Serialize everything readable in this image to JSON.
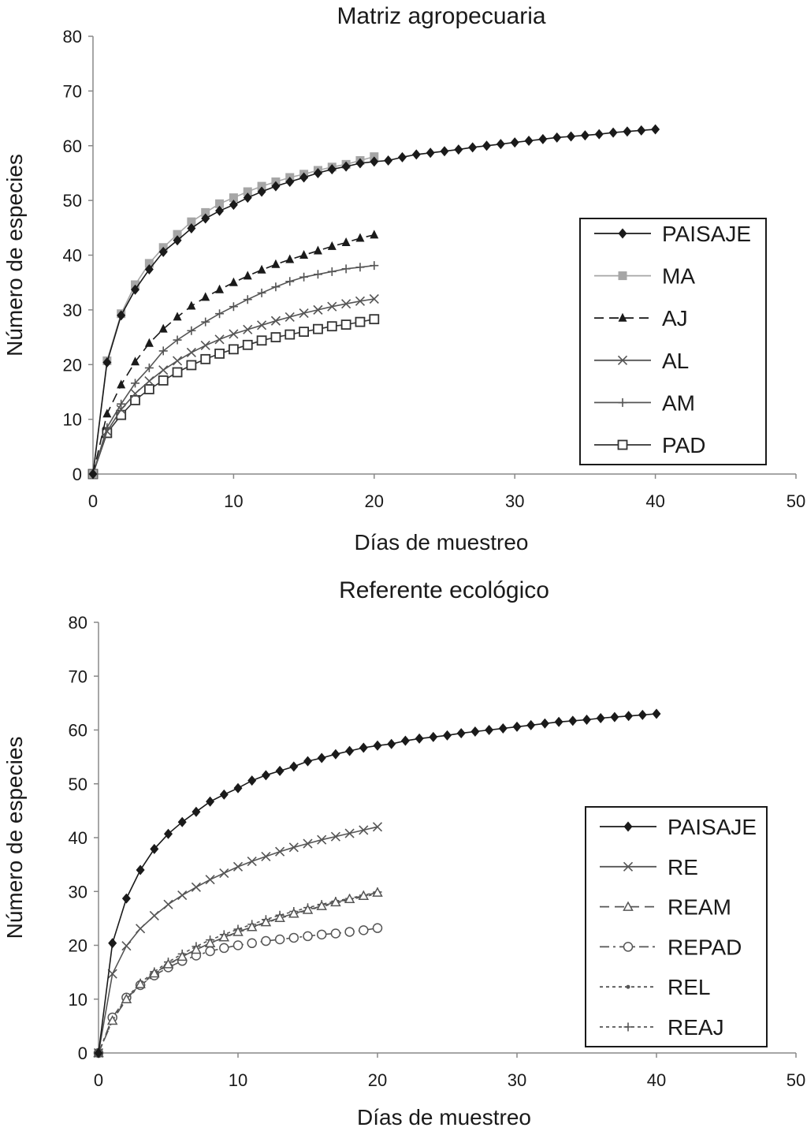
{
  "chart_data": [
    {
      "type": "line",
      "title": "Matriz agropecuaria",
      "xlabel": "Días de muestreo",
      "ylabel": "Número de especies",
      "xlim": [
        0,
        50
      ],
      "ylim": [
        0,
        80
      ],
      "xticks": [
        "0",
        "10",
        "20",
        "30",
        "40",
        "50"
      ],
      "yticks": [
        "0",
        "10",
        "20",
        "30",
        "40",
        "50",
        "60",
        "70",
        "80"
      ],
      "grid": false,
      "legend_position": "right",
      "series": [
        {
          "name": "PAISAJE",
          "color": "#1a1a1a",
          "marker": "diamond",
          "dash": "solid",
          "x": [
            0,
            1,
            2,
            3,
            4,
            5,
            6,
            7,
            8,
            9,
            10,
            11,
            12,
            13,
            14,
            15,
            16,
            17,
            18,
            19,
            20,
            21,
            22,
            23,
            24,
            25,
            26,
            27,
            28,
            29,
            30,
            31,
            32,
            33,
            34,
            35,
            36,
            37,
            38,
            39,
            40
          ],
          "y": [
            0,
            20.4,
            29,
            33.7,
            37.4,
            40.6,
            42.7,
            44.9,
            46.7,
            48.1,
            49.2,
            50.5,
            51.6,
            52.6,
            53.4,
            54.2,
            55,
            55.7,
            56.2,
            56.8,
            57.1,
            57.3,
            57.9,
            58.4,
            58.7,
            59,
            59.3,
            59.7,
            60,
            60.3,
            60.6,
            60.9,
            61.2,
            61.5,
            61.7,
            61.9,
            62.1,
            62.4,
            62.6,
            62.8,
            63
          ]
        },
        {
          "name": "MA",
          "color": "#a6a6a6",
          "marker": "square",
          "dash": "solid",
          "x": [
            0,
            1,
            2,
            3,
            4,
            5,
            6,
            7,
            8,
            9,
            10,
            11,
            12,
            13,
            14,
            15,
            16,
            17,
            18,
            19,
            20
          ],
          "y": [
            0,
            20.7,
            29.3,
            34.6,
            38.5,
            41.4,
            43.8,
            46.1,
            47.8,
            49.4,
            50.5,
            51.6,
            52.6,
            53.4,
            54.2,
            54.8,
            55.5,
            56.1,
            56.6,
            57.3,
            58
          ]
        },
        {
          "name": "AJ",
          "color": "#1a1a1a",
          "marker": "triangle",
          "dash": "dash",
          "x": [
            0,
            1,
            2,
            3,
            4,
            5,
            6,
            7,
            8,
            9,
            10,
            11,
            12,
            13,
            14,
            15,
            16,
            17,
            18,
            19,
            20
          ],
          "y": [
            0,
            11,
            16.3,
            20.5,
            23.9,
            26.5,
            28.7,
            30.7,
            32.3,
            33.7,
            35,
            36.2,
            37.3,
            38.3,
            39.2,
            40,
            40.8,
            41.6,
            42.3,
            43.1,
            43.7
          ]
        },
        {
          "name": "AL",
          "color": "#555555",
          "marker": "x",
          "dash": "solid",
          "x": [
            0,
            1,
            2,
            3,
            4,
            5,
            6,
            7,
            8,
            9,
            10,
            11,
            12,
            13,
            14,
            15,
            16,
            17,
            18,
            19,
            20
          ],
          "y": [
            0,
            7.8,
            11.8,
            14.7,
            17,
            19,
            20.7,
            22.2,
            23.5,
            24.6,
            25.6,
            26.4,
            27.2,
            28,
            28.7,
            29.4,
            30,
            30.6,
            31.1,
            31.6,
            32
          ]
        },
        {
          "name": "AM",
          "color": "#555555",
          "marker": "plus",
          "dash": "solid",
          "x": [
            0,
            1,
            2,
            3,
            4,
            5,
            6,
            7,
            8,
            9,
            10,
            11,
            12,
            13,
            14,
            15,
            16,
            17,
            18,
            19,
            20
          ],
          "y": [
            0,
            8.5,
            12.8,
            16.6,
            19.4,
            22.5,
            24.5,
            26.2,
            27.8,
            29.3,
            30.6,
            31.9,
            33.1,
            34.2,
            35.2,
            36,
            36.5,
            37,
            37.5,
            37.8,
            38.1
          ]
        },
        {
          "name": "PAD",
          "color": "#333333",
          "marker": "open-square",
          "dash": "solid",
          "x": [
            0,
            1,
            2,
            3,
            4,
            5,
            6,
            7,
            8,
            9,
            10,
            11,
            12,
            13,
            14,
            15,
            16,
            17,
            18,
            19,
            20
          ],
          "y": [
            0,
            7.5,
            10.8,
            13.5,
            15.5,
            17.1,
            18.6,
            19.9,
            21,
            22,
            22.8,
            23.6,
            24.4,
            25,
            25.5,
            26,
            26.5,
            27,
            27.3,
            27.8,
            28.3
          ]
        }
      ]
    },
    {
      "type": "line",
      "title": "Referente ecológico",
      "xlabel": "Días de muestreo",
      "ylabel": "Número de especies",
      "xlim": [
        0,
        50
      ],
      "ylim": [
        0,
        80
      ],
      "xticks": [
        "0",
        "10",
        "20",
        "30",
        "40",
        "50"
      ],
      "yticks": [
        "0",
        "10",
        "20",
        "30",
        "40",
        "50",
        "60",
        "70",
        "80"
      ],
      "grid": false,
      "legend_position": "right",
      "series": [
        {
          "name": "PAISAJE",
          "color": "#1a1a1a",
          "marker": "diamond",
          "dash": "solid",
          "x": [
            0,
            1,
            2,
            3,
            4,
            5,
            6,
            7,
            8,
            9,
            10,
            11,
            12,
            13,
            14,
            15,
            16,
            17,
            18,
            19,
            20,
            21,
            22,
            23,
            24,
            25,
            26,
            27,
            28,
            29,
            30,
            31,
            32,
            33,
            34,
            35,
            36,
            37,
            38,
            39,
            40
          ],
          "y": [
            0,
            20.4,
            28.7,
            34,
            37.9,
            40.7,
            42.9,
            44.8,
            46.7,
            48,
            49.2,
            50.6,
            51.6,
            52.4,
            53.2,
            54.2,
            54.8,
            55.5,
            56.1,
            56.7,
            57.1,
            57.4,
            58,
            58.4,
            58.7,
            59,
            59.4,
            59.7,
            60,
            60.3,
            60.6,
            60.9,
            61.2,
            61.5,
            61.7,
            61.9,
            62.2,
            62.4,
            62.6,
            62.8,
            63
          ]
        },
        {
          "name": "RE",
          "color": "#555555",
          "marker": "x",
          "dash": "solid",
          "x": [
            0,
            1,
            2,
            3,
            4,
            5,
            6,
            7,
            8,
            9,
            10,
            11,
            12,
            13,
            14,
            15,
            16,
            17,
            18,
            19,
            20
          ],
          "y": [
            0,
            14.7,
            19.9,
            23.1,
            25.5,
            27.6,
            29.3,
            30.8,
            32.2,
            33.4,
            34.6,
            35.6,
            36.5,
            37.4,
            38.2,
            38.9,
            39.6,
            40.2,
            40.8,
            41.4,
            42
          ]
        },
        {
          "name": "REAM",
          "color": "#555555",
          "marker": "open-triangle",
          "dash": "dash",
          "x": [
            0,
            1,
            2,
            3,
            4,
            5,
            6,
            7,
            8,
            9,
            10,
            11,
            12,
            13,
            14,
            15,
            16,
            17,
            18,
            19,
            20
          ],
          "y": [
            0,
            6,
            10,
            12.8,
            14.8,
            16.5,
            17.9,
            19.2,
            20.4,
            21.5,
            22.5,
            23.4,
            24.3,
            25.1,
            25.9,
            26.6,
            27.3,
            28,
            28.6,
            29.2,
            29.8
          ]
        },
        {
          "name": "REPAD",
          "color": "#555555",
          "marker": "open-circle",
          "dash": "dashdot",
          "x": [
            0,
            1,
            2,
            3,
            4,
            5,
            6,
            7,
            8,
            9,
            10,
            11,
            12,
            13,
            14,
            15,
            16,
            17,
            18,
            19,
            20
          ],
          "y": [
            0,
            6.6,
            10.3,
            12.6,
            14.4,
            15.9,
            17.1,
            18.1,
            18.9,
            19.5,
            20,
            20.4,
            20.8,
            21.1,
            21.4,
            21.7,
            22,
            22.2,
            22.5,
            22.8,
            23.2
          ]
        },
        {
          "name": "REL",
          "color": "#555555",
          "marker": "dot",
          "dash": "dot",
          "x": [
            0,
            1,
            2,
            3,
            4,
            5,
            6,
            7,
            8,
            9,
            10,
            11,
            12,
            13,
            14,
            15,
            16,
            17,
            18,
            19,
            20
          ],
          "y": [
            0,
            6.1,
            9.9,
            12.6,
            14.7,
            16.4,
            17.9,
            19.2,
            20.4,
            21.4,
            22.4,
            23.3,
            24.2,
            25,
            25.8,
            26.5,
            27.2,
            27.8,
            28.5,
            29,
            29.6
          ]
        },
        {
          "name": "REAJ",
          "color": "#555555",
          "marker": "plus",
          "dash": "dot",
          "x": [
            0,
            1,
            2,
            3,
            4,
            5,
            6,
            7,
            8,
            9,
            10,
            11,
            12,
            13,
            14,
            15,
            16,
            17,
            18,
            19,
            20
          ],
          "y": [
            0,
            6.3,
            10.2,
            13,
            15.1,
            16.9,
            18.4,
            19.8,
            21,
            22,
            23,
            23.9,
            24.8,
            25.6,
            26.3,
            27,
            27.6,
            28.2,
            28.7,
            29.3,
            29.9
          ]
        }
      ]
    }
  ]
}
